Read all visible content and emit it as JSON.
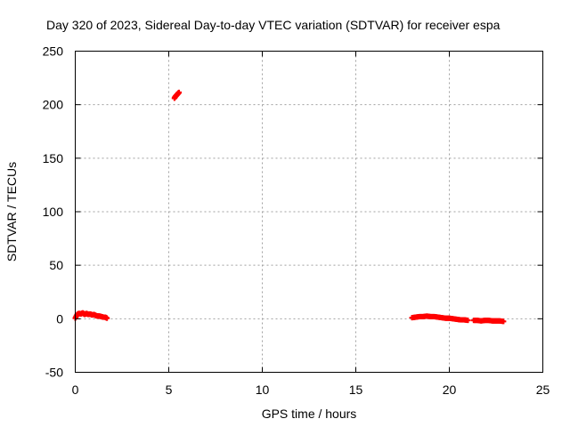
{
  "chart_data": {
    "type": "scatter",
    "title": "Day 320 of 2023, Sidereal Day-to-day VTEC variation (SDTVAR) for receiver espa",
    "xlabel": "GPS time / hours",
    "ylabel": "SDTVAR / TECUs",
    "xlim": [
      0,
      25
    ],
    "ylim": [
      -50,
      250
    ],
    "xticks": [
      "0",
      "5",
      "10",
      "15",
      "20",
      "25"
    ],
    "xtick_values": [
      0,
      5,
      10,
      15,
      20,
      25
    ],
    "yticks": [
      "-50",
      "0",
      "50",
      "100",
      "150",
      "200",
      "250"
    ],
    "ytick_values": [
      -50,
      0,
      50,
      100,
      150,
      200,
      250
    ],
    "grid": true,
    "marker": "plus",
    "series": [
      {
        "color": "#ff0000",
        "segments": [
          {
            "x": [
              0.0,
              0.1,
              0.2,
              0.3,
              0.4,
              0.5,
              0.6,
              0.7,
              0.8,
              0.9,
              1.0,
              1.1,
              1.2,
              1.3,
              1.4,
              1.5,
              1.6,
              1.7
            ],
            "y": [
              0.5,
              4.0,
              5.0,
              4.5,
              5.5,
              4.0,
              5.0,
              4.0,
              4.5,
              3.5,
              4.0,
              3.0,
              2.5,
              2.5,
              2.0,
              1.5,
              1.5,
              0.5
            ]
          },
          {
            "x": [
              5.3,
              5.35,
              5.4,
              5.45,
              5.5,
              5.55
            ],
            "y": [
              206,
              207.5,
              208.5,
              209.5,
              210.5,
              211.5
            ]
          },
          {
            "x": [
              18.0,
              18.2,
              18.4,
              18.6,
              18.8,
              19.0,
              19.2,
              19.4,
              19.6,
              19.8,
              20.0,
              20.2,
              20.4,
              20.6,
              20.8,
              21.0
            ],
            "y": [
              1.0,
              1.5,
              2.0,
              2.0,
              2.5,
              2.0,
              2.0,
              1.5,
              1.0,
              0.5,
              0.5,
              0.0,
              -0.5,
              -1.0,
              -1.0,
              -1.5
            ]
          },
          {
            "x": [
              21.3,
              21.5,
              21.7,
              21.9,
              22.1,
              22.3,
              22.5,
              22.7,
              22.9
            ],
            "y": [
              -1.5,
              -1.5,
              -2.0,
              -1.5,
              -1.5,
              -2.0,
              -2.0,
              -2.0,
              -2.5
            ]
          }
        ]
      }
    ]
  }
}
